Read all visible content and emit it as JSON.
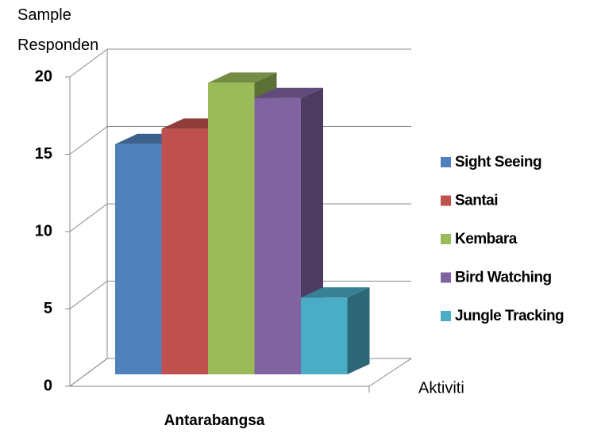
{
  "chart_data": {
    "type": "bar3d",
    "y_label": "Sample Responden",
    "x_label": "Aktiviti",
    "categories": [
      "Antarabangsa"
    ],
    "series": [
      {
        "name": "Sight Seeing",
        "color": "#4f81bd",
        "values": [
          15
        ]
      },
      {
        "name": "Santai",
        "color": "#c0504d",
        "values": [
          16
        ]
      },
      {
        "name": "Kembara",
        "color": "#9bbb59",
        "values": [
          19
        ]
      },
      {
        "name": "Bird Watching",
        "color": "#8064a2",
        "values": [
          18
        ]
      },
      {
        "name": "Jungle Tracking",
        "color": "#4bacc6",
        "values": [
          5
        ]
      }
    ],
    "ylim": [
      0,
      20
    ],
    "yticks": [
      0,
      5,
      10,
      15,
      20
    ],
    "grid": true,
    "legend": "right"
  }
}
